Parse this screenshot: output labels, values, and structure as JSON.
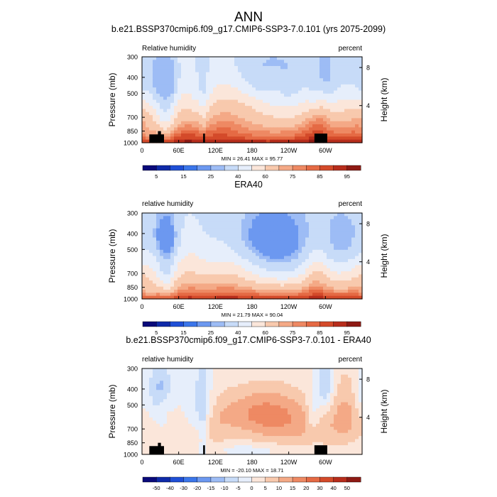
{
  "page_title": "ANN",
  "colors": {
    "abs_scale": [
      "#0a0a7a",
      "#0f2aa8",
      "#1f4fd6",
      "#3b76ea",
      "#6c98f0",
      "#9dbcf5",
      "#c7dbf8",
      "#e6eefb",
      "#fbe6da",
      "#f8c9ad",
      "#f4a986",
      "#ee8963",
      "#e56a44",
      "#d44a2a",
      "#b72d1c",
      "#8e1a14"
    ],
    "diff_scale": [
      "#0a0a7a",
      "#0f2aa8",
      "#1f4fd6",
      "#3b76ea",
      "#6c98f0",
      "#9dbcf5",
      "#c7dbf8",
      "#e6eefb",
      "#fbe6da",
      "#f8c9ad",
      "#f4a986",
      "#ee8963",
      "#e56a44",
      "#d44a2a",
      "#b72d1c",
      "#8e1a14"
    ],
    "topography": "#000000"
  },
  "chart_data": [
    {
      "type": "heatmap",
      "title": "b.e21.BSSP370cmip6.f09_g17.CMIP6-SSP3-7.0.101 (yrs 2075-2099)",
      "left_label": "Relative humidity",
      "right_label": "percent",
      "ylabel": "Pressure (mb)",
      "ylabel_right": "Height (km)",
      "x_ticks": [
        "0",
        "60E",
        "120E",
        "180",
        "120W",
        "60W"
      ],
      "x_tick_lons": [
        0,
        60,
        120,
        180,
        240,
        300
      ],
      "xlim": [
        0,
        360
      ],
      "y_ticks": [
        "300",
        "400",
        "500",
        "700",
        "850",
        "1000"
      ],
      "y_tick_values": [
        300,
        400,
        500,
        700,
        850,
        1000
      ],
      "ylim": [
        300,
        1000
      ],
      "right_ticks": [
        "8",
        "4"
      ],
      "right_tick_km": [
        8,
        4
      ],
      "min_max": "MIN = 26.41  MAX = 95.77",
      "min": 26.41,
      "max": 95.77,
      "colorbar_labels": [
        "5",
        "15",
        "25",
        "40",
        "60",
        "75",
        "85",
        "95"
      ],
      "colorbar_levels": [
        5,
        10,
        15,
        20,
        25,
        30,
        40,
        50,
        60,
        70,
        75,
        80,
        85,
        90,
        95
      ],
      "field": "model",
      "topography": true
    },
    {
      "type": "heatmap",
      "title": "ERA40",
      "left_label": "relative humidity",
      "right_label": "percent",
      "ylabel": "Pressure (mb)",
      "ylabel_right": "Height (km)",
      "x_ticks": [
        "0",
        "60E",
        "120E",
        "180",
        "120W",
        "60W"
      ],
      "x_tick_lons": [
        0,
        60,
        120,
        180,
        240,
        300
      ],
      "xlim": [
        0,
        360
      ],
      "y_ticks": [
        "300",
        "400",
        "500",
        "700",
        "850",
        "1000"
      ],
      "y_tick_values": [
        300,
        400,
        500,
        700,
        850,
        1000
      ],
      "ylim": [
        300,
        1000
      ],
      "right_ticks": [
        "8",
        "4"
      ],
      "right_tick_km": [
        8,
        4
      ],
      "min_max": "MIN = 21.79  MAX = 90.04",
      "min": 21.79,
      "max": 90.04,
      "colorbar_labels": [
        "5",
        "15",
        "25",
        "40",
        "60",
        "75",
        "85",
        "95"
      ],
      "colorbar_levels": [
        5,
        10,
        15,
        20,
        25,
        30,
        40,
        50,
        60,
        70,
        75,
        80,
        85,
        90,
        95
      ],
      "field": "obs",
      "topography": false
    },
    {
      "type": "heatmap",
      "title": "b.e21.BSSP370cmip6.f09_g17.CMIP6-SSP3-7.0.101 - ERA40",
      "left_label": "relative humidity",
      "right_label": "percent",
      "ylabel": "Pressure (mb)",
      "ylabel_right": "Height (km)",
      "x_ticks": [
        "0",
        "60E",
        "120E",
        "180",
        "120W",
        "60W"
      ],
      "x_tick_lons": [
        0,
        60,
        120,
        180,
        240,
        300
      ],
      "xlim": [
        0,
        360
      ],
      "y_ticks": [
        "300",
        "400",
        "500",
        "700",
        "850",
        "1000"
      ],
      "y_tick_values": [
        300,
        400,
        500,
        700,
        850,
        1000
      ],
      "ylim": [
        300,
        1000
      ],
      "right_ticks": [
        "8",
        "4"
      ],
      "right_tick_km": [
        8,
        4
      ],
      "min_max": "MIN = -20.10  MAX = 18.71",
      "min": -20.1,
      "max": 18.71,
      "colorbar_labels": [
        "-50",
        "-40",
        "-30",
        "-20",
        "-15",
        "-10",
        "-5",
        "0",
        "5",
        "10",
        "15",
        "20",
        "30",
        "40",
        "50"
      ],
      "colorbar_levels": [
        -50,
        -40,
        -30,
        -20,
        -15,
        -10,
        -5,
        0,
        5,
        10,
        15,
        20,
        30,
        40,
        50
      ],
      "field": "diff",
      "topography": true
    }
  ]
}
